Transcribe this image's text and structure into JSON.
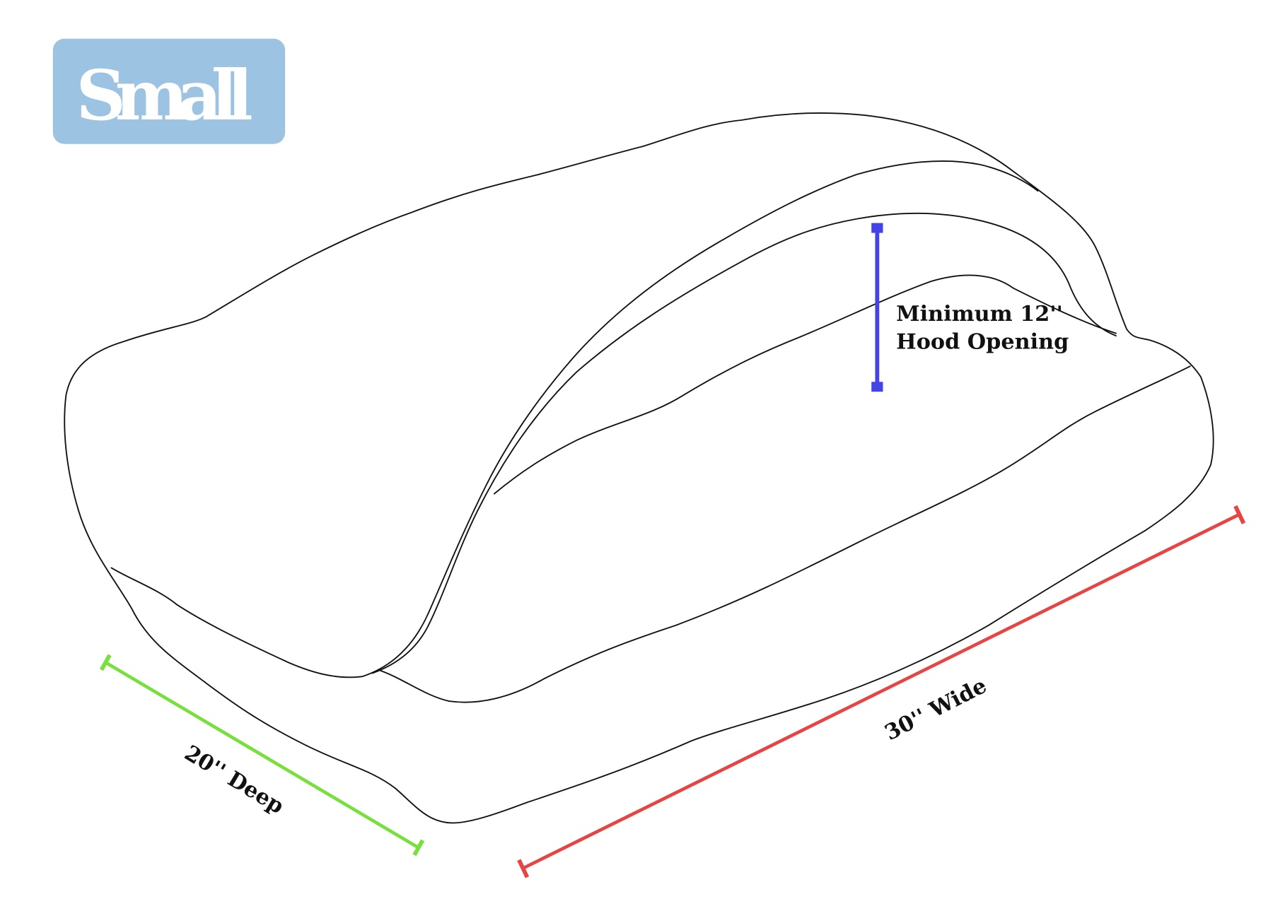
{
  "badge": {
    "label": "Small",
    "color": "#9dc3e3"
  },
  "dimensions": {
    "height": {
      "line1": "Minimum 12''",
      "line2": "Hood Opening",
      "color": "#4444e6"
    },
    "depth": {
      "label": "20'' Deep",
      "color": "#77e03c"
    },
    "width": {
      "label": "30'' Wide",
      "color": "#e84444"
    }
  }
}
